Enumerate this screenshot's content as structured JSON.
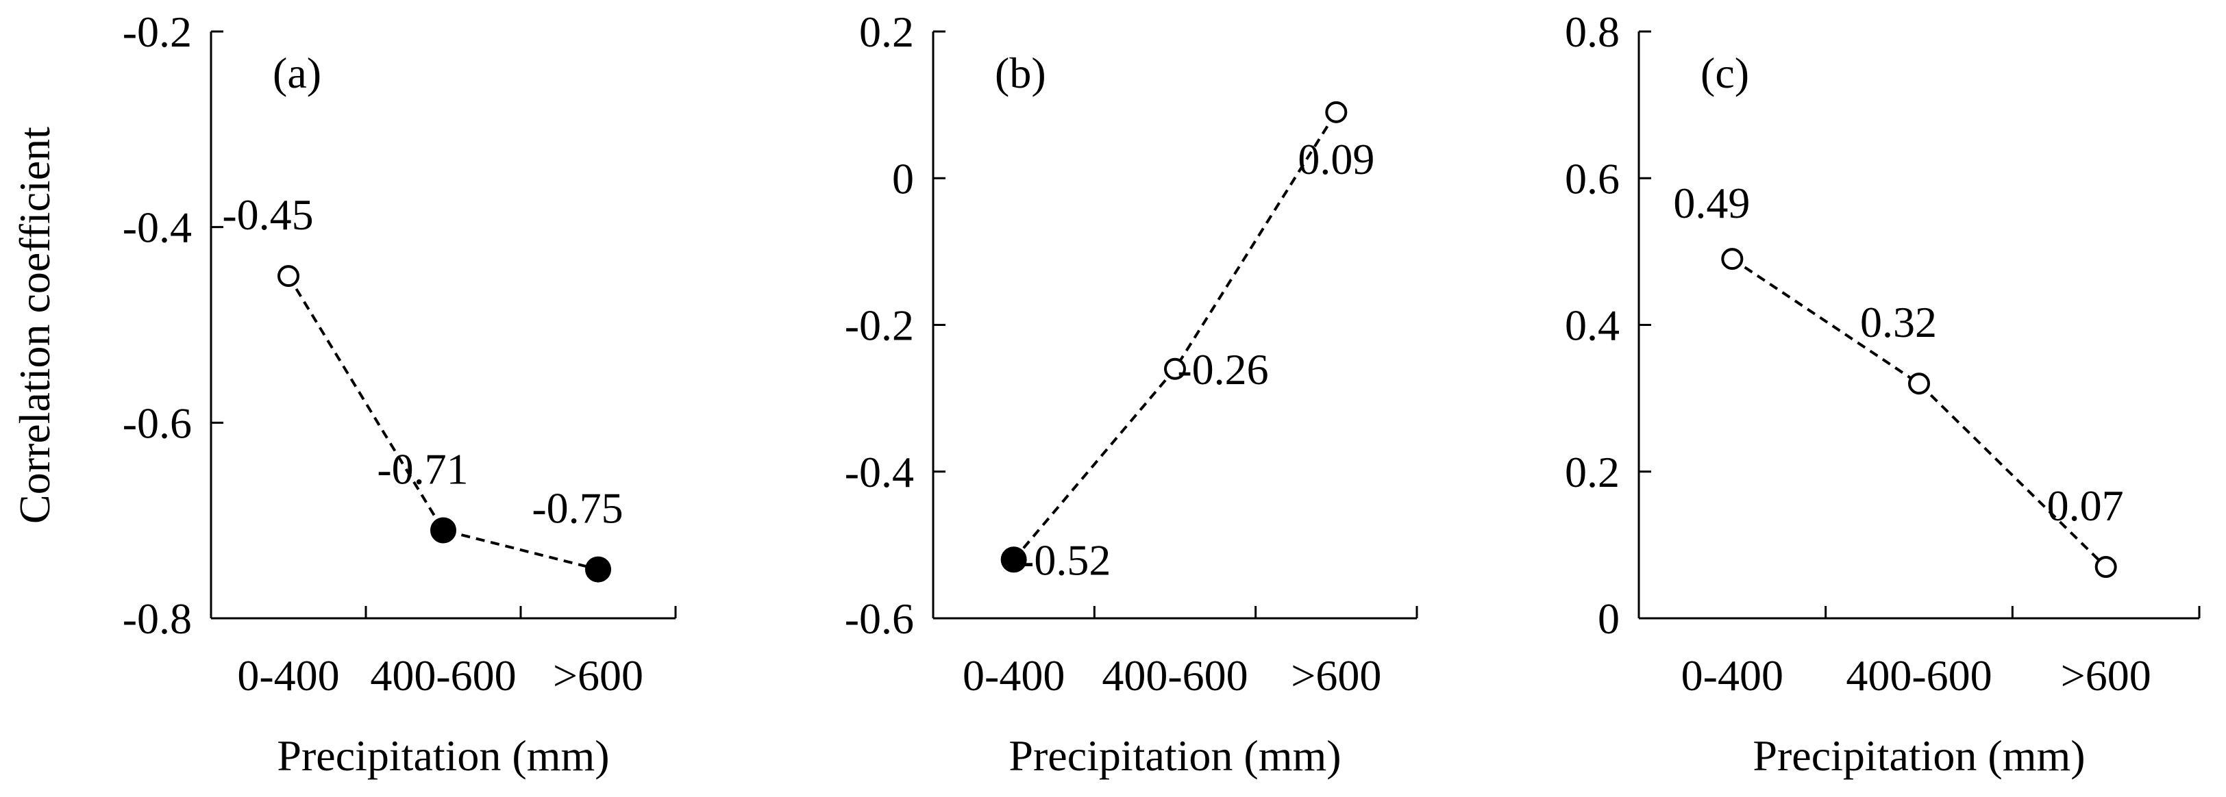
{
  "chart_data": [
    {
      "type": "line",
      "panel_label": "(a)",
      "ylabel": "Correlation coefficient",
      "xlabel": "Precipitation (mm)",
      "categories": [
        "0-400",
        "400-600",
        ">600"
      ],
      "values": [
        -0.45,
        -0.71,
        -0.75
      ],
      "value_labels": [
        "-0.45",
        "-0.71",
        "-0.75"
      ],
      "significant": [
        false,
        true,
        true
      ],
      "ylim": [
        -0.8,
        -0.2
      ],
      "yticks": [
        -0.8,
        -0.6,
        -0.4,
        -0.2
      ],
      "ytick_labels": [
        "-0.8",
        "-0.6",
        "-0.4",
        "-0.2"
      ]
    },
    {
      "type": "line",
      "panel_label": "(b)",
      "ylabel": "",
      "xlabel": "Precipitation (mm)",
      "categories": [
        "0-400",
        "400-600",
        ">600"
      ],
      "values": [
        -0.52,
        -0.26,
        0.09
      ],
      "value_labels": [
        "-0.52",
        "-0.26",
        "0.09"
      ],
      "significant": [
        true,
        false,
        false
      ],
      "ylim": [
        -0.6,
        0.2
      ],
      "yticks": [
        -0.6,
        -0.4,
        -0.2,
        0,
        0.2
      ],
      "ytick_labels": [
        "-0.6",
        "-0.4",
        "-0.2",
        "0",
        "0.2"
      ]
    },
    {
      "type": "line",
      "panel_label": "(c)",
      "ylabel": "",
      "xlabel": "Precipitation (mm)",
      "categories": [
        "0-400",
        "400-600",
        ">600"
      ],
      "values": [
        0.49,
        0.32,
        0.07
      ],
      "value_labels": [
        "0.49",
        "0.32",
        "0.07"
      ],
      "significant": [
        false,
        false,
        false
      ],
      "ylim": [
        0,
        0.8
      ],
      "yticks": [
        0,
        0.2,
        0.4,
        0.6,
        0.8
      ],
      "ytick_labels": [
        "0",
        "0.2",
        "0.4",
        "0.6",
        "0.8"
      ]
    }
  ]
}
